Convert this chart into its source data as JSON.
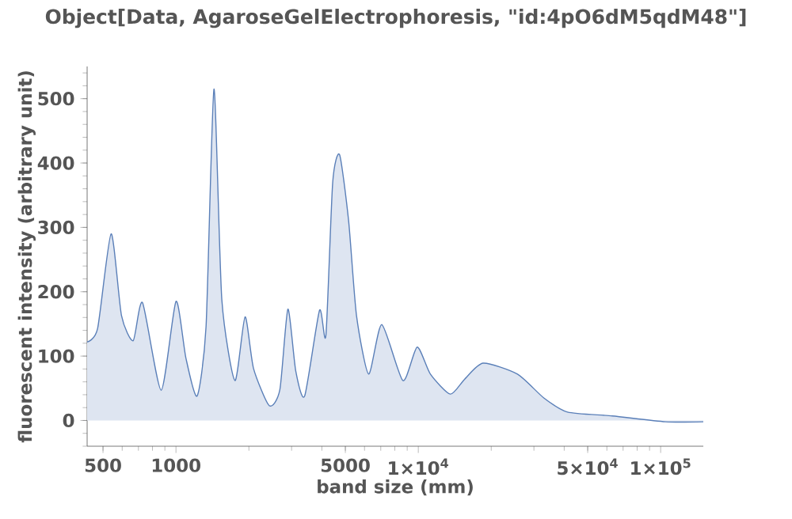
{
  "chart_data": {
    "type": "area",
    "title": "Object[Data, AgaroseGelElectrophoresis, \"id:4pO6dM5qdM48\"]",
    "xlabel": "band size (mm)",
    "ylabel": "fluorescent intensity (arbitrary unit)",
    "log": "x",
    "xlim": [
      430,
      150000
    ],
    "ylim": [
      -40,
      550
    ],
    "xticks": [
      500,
      1000,
      5000,
      {
        "value": 10000,
        "label": "1×10$^{4}$"
      },
      {
        "value": 50000,
        "label": "5×10$^{4}$"
      },
      {
        "value": 100000,
        "label": "1×10$^{5}$"
      }
    ],
    "yticks": [
      0,
      100,
      200,
      300,
      400,
      500
    ],
    "series": [
      {
        "color": "#5a7fb8",
        "x": [
          430,
          475,
          540,
          596,
          666,
          728,
          869,
          1000,
          1099,
          1222,
          1331,
          1435,
          1546,
          1751,
          1928,
          2089,
          2427,
          2684,
          2896,
          3121,
          3397,
          3912,
          4156,
          4432,
          4733,
          5155,
          5559,
          6240,
          7069,
          8636,
          9890,
          11220,
          13550,
          15520,
          18520,
          25660,
          32960,
          41300,
          63300,
          104500,
          150000
        ],
        "values": [
          122,
          143,
          290,
          163,
          124,
          183,
          47,
          185,
          97,
          38,
          146,
          515,
          188,
          62,
          161,
          81,
          23,
          48,
          173,
          77,
          38,
          171,
          132,
          369,
          413,
          311,
          163,
          72,
          149,
          62,
          114,
          72,
          41,
          64,
          89,
          72,
          35,
          13,
          7,
          -2,
          -2
        ]
      }
    ]
  }
}
